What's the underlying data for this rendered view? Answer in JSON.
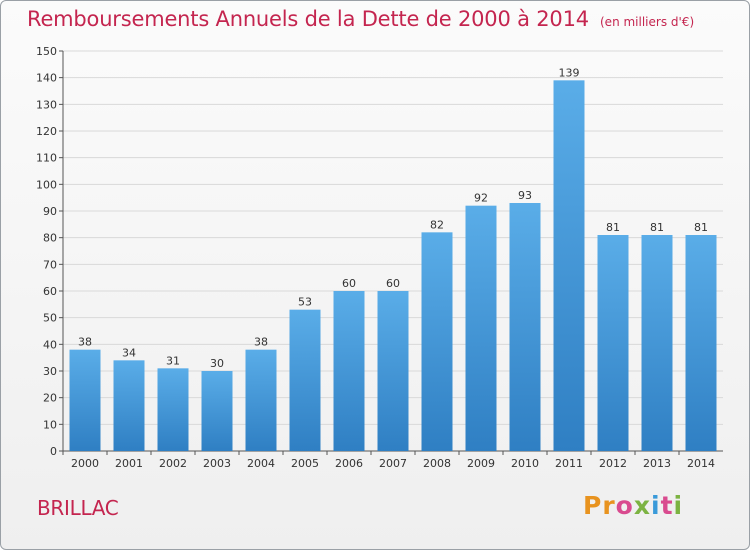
{
  "title": "Remboursements Annuels de la Dette de 2000 à 2014",
  "unit": "(en milliers d'€)",
  "commune": "BRILLAC",
  "logo": {
    "text": "Proxiti",
    "colors": [
      "#e8931f",
      "#3a9ad9",
      "#7cb342",
      "#d94b8f"
    ]
  },
  "colors": {
    "bar_top": "#5aade8",
    "bar_bottom": "#2f7fc3",
    "title": "#c4254f",
    "axis": "#555555",
    "grid": "#d9d9d9"
  },
  "chart_data": {
    "type": "bar",
    "categories": [
      "2000",
      "2001",
      "2002",
      "2003",
      "2004",
      "2005",
      "2006",
      "2007",
      "2008",
      "2009",
      "2010",
      "2011",
      "2012",
      "2013",
      "2014"
    ],
    "values": [
      38,
      34,
      31,
      30,
      38,
      53,
      60,
      60,
      82,
      92,
      93,
      139,
      81,
      81,
      81
    ],
    "ylim": [
      0,
      150
    ],
    "yticks": [
      0,
      10,
      20,
      30,
      40,
      50,
      60,
      70,
      80,
      90,
      100,
      110,
      120,
      130,
      140,
      150
    ],
    "grid": true,
    "xlabel": "",
    "ylabel": ""
  }
}
